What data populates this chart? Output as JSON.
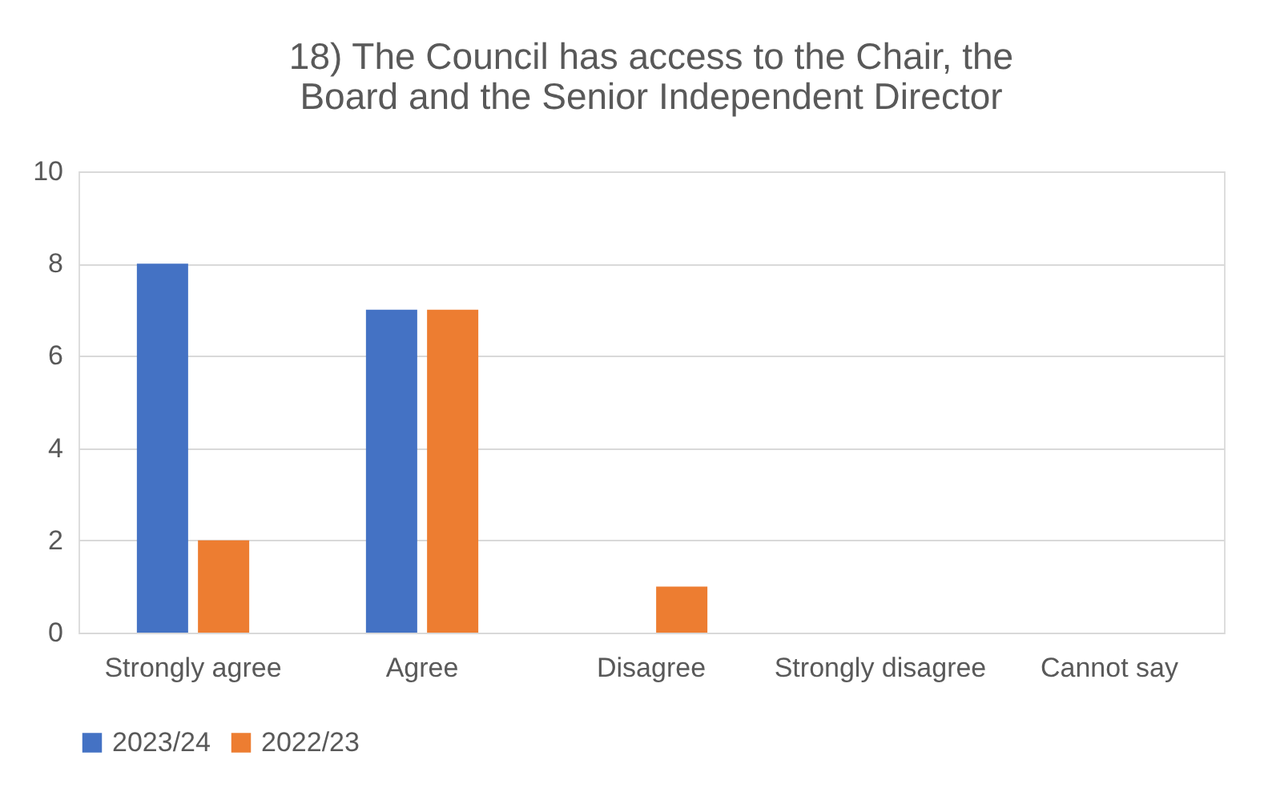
{
  "chart_data": {
    "type": "bar",
    "title": "18) The Council has access to the Chair, the Board and the Senior Independent Director",
    "categories": [
      "Strongly agree",
      "Agree",
      "Disagree",
      "Strongly disagree",
      "Cannot say"
    ],
    "series": [
      {
        "name": "2023/24",
        "color": "#4472c4",
        "values": [
          8,
          7,
          0,
          0,
          0
        ]
      },
      {
        "name": "2022/23",
        "color": "#ed7d31",
        "values": [
          2,
          7,
          1,
          0,
          0
        ]
      }
    ],
    "ylim": [
      0,
      10
    ],
    "yticks": [
      0,
      2,
      4,
      6,
      8,
      10
    ],
    "grid": "y",
    "legend": "bottom"
  }
}
